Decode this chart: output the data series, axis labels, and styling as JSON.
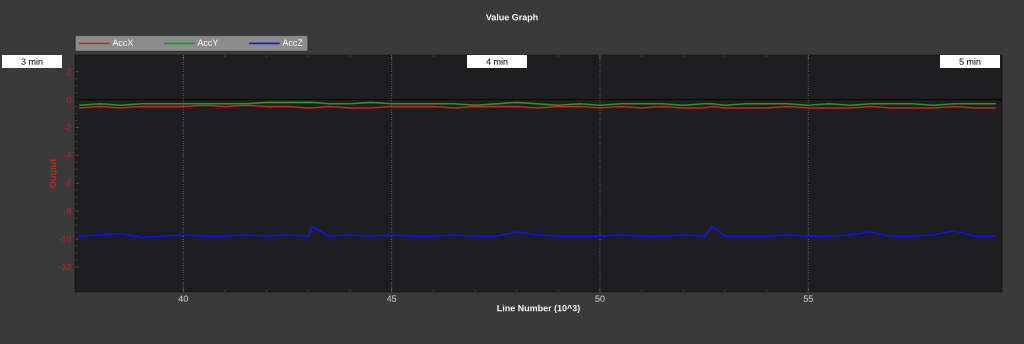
{
  "chart_data": {
    "type": "line",
    "title": "Value Graph",
    "xlabel": "Line Number (10^3)",
    "ylabel": "Output",
    "x": [
      37.5,
      38,
      38.5,
      39,
      39.5,
      40,
      40.5,
      41,
      41.5,
      42,
      42.5,
      43,
      43.1,
      43.5,
      44,
      44.5,
      45,
      45.5,
      46,
      46.5,
      47,
      47.5,
      48,
      48.5,
      49,
      49.5,
      50,
      50.5,
      51,
      51.5,
      52,
      52.5,
      52.7,
      53,
      53.5,
      54,
      54.5,
      55,
      55.5,
      56,
      56.5,
      57,
      57.5,
      58,
      58.5,
      59,
      59.5
    ],
    "series": [
      {
        "name": "AccX",
        "color": "#d42020",
        "values": [
          -0.6,
          -0.5,
          -0.6,
          -0.5,
          -0.5,
          -0.5,
          -0.4,
          -0.5,
          -0.4,
          -0.5,
          -0.5,
          -0.6,
          -0.6,
          -0.5,
          -0.6,
          -0.6,
          -0.5,
          -0.5,
          -0.5,
          -0.6,
          -0.5,
          -0.5,
          -0.5,
          -0.6,
          -0.5,
          -0.5,
          -0.6,
          -0.5,
          -0.6,
          -0.5,
          -0.6,
          -0.6,
          -0.5,
          -0.6,
          -0.6,
          -0.6,
          -0.5,
          -0.6,
          -0.6,
          -0.6,
          -0.5,
          -0.6,
          -0.6,
          -0.6,
          -0.5,
          -0.6,
          -0.6
        ]
      },
      {
        "name": "AccY",
        "color": "#1f9a1f",
        "values": [
          -0.4,
          -0.3,
          -0.4,
          -0.3,
          -0.3,
          -0.3,
          -0.3,
          -0.3,
          -0.3,
          -0.2,
          -0.2,
          -0.2,
          -0.2,
          -0.3,
          -0.3,
          -0.2,
          -0.3,
          -0.3,
          -0.3,
          -0.3,
          -0.4,
          -0.3,
          -0.2,
          -0.3,
          -0.4,
          -0.3,
          -0.4,
          -0.3,
          -0.3,
          -0.3,
          -0.4,
          -0.3,
          -0.3,
          -0.4,
          -0.3,
          -0.3,
          -0.3,
          -0.4,
          -0.3,
          -0.4,
          -0.3,
          -0.3,
          -0.3,
          -0.4,
          -0.3,
          -0.3,
          -0.3
        ]
      },
      {
        "name": "AccZ",
        "color": "#0a14ff",
        "values": [
          -9.8,
          -9.7,
          -9.6,
          -9.9,
          -9.8,
          -9.7,
          -9.8,
          -9.8,
          -9.7,
          -9.8,
          -9.7,
          -9.8,
          -9.1,
          -9.8,
          -9.7,
          -9.8,
          -9.7,
          -9.8,
          -9.8,
          -9.7,
          -9.8,
          -9.8,
          -9.5,
          -9.7,
          -9.8,
          -9.8,
          -9.8,
          -9.7,
          -9.8,
          -9.8,
          -9.7,
          -9.8,
          -9.1,
          -9.8,
          -9.8,
          -9.8,
          -9.7,
          -9.8,
          -9.8,
          -9.7,
          -9.5,
          -9.8,
          -9.8,
          -9.7,
          -9.4,
          -9.8,
          -9.8
        ]
      }
    ],
    "xlim": [
      37.4,
      59.65
    ],
    "ylim": [
      -13.8,
      3.2
    ],
    "xticks": [
      40,
      45,
      50,
      55
    ],
    "yticks": [
      2,
      0,
      -2,
      -4,
      -6,
      -8,
      -10,
      -12
    ],
    "grid": "x",
    "legend": "top left",
    "marker": "none",
    "line_style": "solid",
    "ref_lines": [
      {
        "axis": "y",
        "value": 0,
        "color": "#000000"
      }
    ],
    "annotations": [
      "3 min",
      "4 min",
      "5 min"
    ]
  }
}
